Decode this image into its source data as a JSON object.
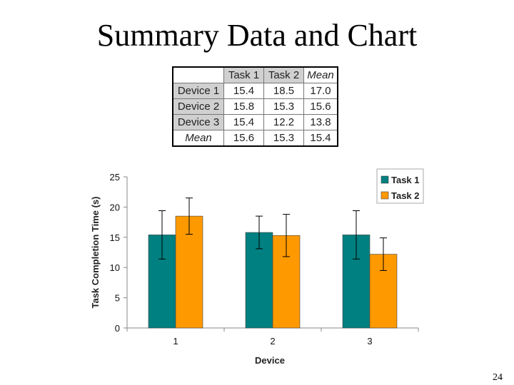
{
  "slide": {
    "title": "Summary Data and Chart",
    "page_number": "24"
  },
  "table": {
    "columns": [
      "Task 1",
      "Task 2",
      "Mean"
    ],
    "rows": [
      {
        "label": "Device 1",
        "values": [
          "15.4",
          "18.5",
          "17.0"
        ]
      },
      {
        "label": "Device 2",
        "values": [
          "15.8",
          "15.3",
          "15.6"
        ]
      },
      {
        "label": "Device 3",
        "values": [
          "15.4",
          "12.2",
          "13.8"
        ]
      },
      {
        "label": "Mean",
        "values": [
          "15.6",
          "15.3",
          "15.4"
        ]
      }
    ]
  },
  "chart_data": {
    "type": "bar",
    "categories": [
      "1",
      "2",
      "3"
    ],
    "series": [
      {
        "name": "Task 1",
        "color": "#008080",
        "values": [
          15.4,
          15.8,
          15.4
        ],
        "error": [
          4.0,
          2.7,
          4.0
        ]
      },
      {
        "name": "Task 2",
        "color": "#ff9900",
        "values": [
          18.5,
          15.3,
          12.2
        ],
        "error": [
          3.0,
          3.5,
          2.7
        ]
      }
    ],
    "xlabel": "Device",
    "ylabel": "Task Completion Time (s)",
    "ylim": [
      0,
      25
    ],
    "yticks": [
      "0",
      "5",
      "10",
      "15",
      "20",
      "25"
    ],
    "legend_position": "top-right",
    "grid": false
  }
}
